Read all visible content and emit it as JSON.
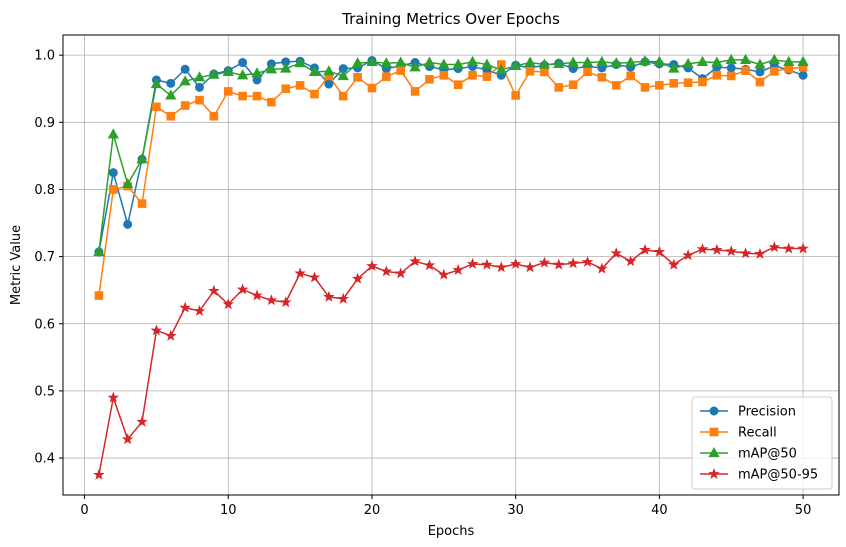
{
  "chart_data": {
    "type": "line",
    "title": "Training Metrics Over Epochs",
    "xlabel": "Epochs",
    "ylabel": "Metric Value",
    "xlim": [
      -1.5,
      52.5
    ],
    "ylim": [
      0.345,
      1.03
    ],
    "xticks": [
      0,
      10,
      20,
      30,
      40,
      50
    ],
    "yticks": [
      0.4,
      0.5,
      0.6,
      0.7,
      0.8,
      0.9,
      1.0
    ],
    "ytick_labels": [
      "0.4",
      "0.5",
      "0.6",
      "0.7",
      "0.8",
      "0.9",
      "1.0"
    ],
    "grid": true,
    "legend_position": "lower-right",
    "x": [
      1,
      2,
      3,
      4,
      5,
      6,
      7,
      8,
      9,
      10,
      11,
      12,
      13,
      14,
      15,
      16,
      17,
      18,
      19,
      20,
      21,
      22,
      23,
      24,
      25,
      26,
      27,
      28,
      29,
      30,
      31,
      32,
      33,
      34,
      35,
      36,
      37,
      38,
      39,
      40,
      41,
      42,
      43,
      44,
      45,
      46,
      47,
      48,
      49,
      50
    ],
    "series": [
      {
        "name": "Precision",
        "color": "#1f77b4",
        "marker": "circle",
        "values": [
          0.707,
          0.825,
          0.748,
          0.845,
          0.963,
          0.958,
          0.979,
          0.952,
          0.972,
          0.977,
          0.989,
          0.963,
          0.987,
          0.99,
          0.991,
          0.981,
          0.957,
          0.98,
          0.981,
          0.992,
          0.98,
          0.984,
          0.989,
          0.983,
          0.978,
          0.98,
          0.983,
          0.978,
          0.97,
          0.985,
          0.981,
          0.985,
          0.988,
          0.98,
          0.983,
          0.981,
          0.986,
          0.982,
          0.99,
          0.987,
          0.986,
          0.981,
          0.965,
          0.982,
          0.981,
          0.979,
          0.975,
          0.984,
          0.978,
          0.97
        ]
      },
      {
        "name": "Recall",
        "color": "#ff7f0e",
        "marker": "square",
        "values": [
          0.642,
          0.8,
          0.805,
          0.779,
          0.923,
          0.909,
          0.925,
          0.933,
          0.909,
          0.946,
          0.939,
          0.939,
          0.93,
          0.95,
          0.955,
          0.942,
          0.969,
          0.939,
          0.967,
          0.951,
          0.968,
          0.977,
          0.946,
          0.964,
          0.97,
          0.956,
          0.97,
          0.968,
          0.986,
          0.94,
          0.976,
          0.975,
          0.952,
          0.956,
          0.975,
          0.967,
          0.955,
          0.969,
          0.952,
          0.955,
          0.958,
          0.959,
          0.96,
          0.97,
          0.969,
          0.977,
          0.96,
          0.976,
          0.98,
          0.982
        ]
      },
      {
        "name": "mAP@50",
        "color": "#2ca02c",
        "marker": "triangle",
        "values": [
          0.707,
          0.882,
          0.808,
          0.845,
          0.957,
          0.94,
          0.961,
          0.967,
          0.971,
          0.975,
          0.97,
          0.973,
          0.979,
          0.98,
          0.988,
          0.975,
          0.976,
          0.969,
          0.988,
          0.99,
          0.988,
          0.989,
          0.982,
          0.989,
          0.986,
          0.986,
          0.99,
          0.986,
          0.978,
          0.984,
          0.989,
          0.986,
          0.987,
          0.989,
          0.989,
          0.99,
          0.988,
          0.989,
          0.991,
          0.99,
          0.98,
          0.987,
          0.99,
          0.989,
          0.993,
          0.993,
          0.986,
          0.993,
          0.99,
          0.99
        ]
      },
      {
        "name": "mAP@50-95",
        "color": "#d62728",
        "marker": "star",
        "values": [
          0.375,
          0.49,
          0.428,
          0.454,
          0.59,
          0.582,
          0.624,
          0.619,
          0.649,
          0.629,
          0.651,
          0.642,
          0.635,
          0.632,
          0.675,
          0.669,
          0.64,
          0.637,
          0.667,
          0.686,
          0.678,
          0.675,
          0.693,
          0.687,
          0.673,
          0.68,
          0.689,
          0.688,
          0.684,
          0.689,
          0.684,
          0.691,
          0.688,
          0.69,
          0.692,
          0.682,
          0.705,
          0.693,
          0.71,
          0.707,
          0.688,
          0.702,
          0.711,
          0.71,
          0.708,
          0.705,
          0.704,
          0.714,
          0.712,
          0.712
        ]
      }
    ]
  }
}
